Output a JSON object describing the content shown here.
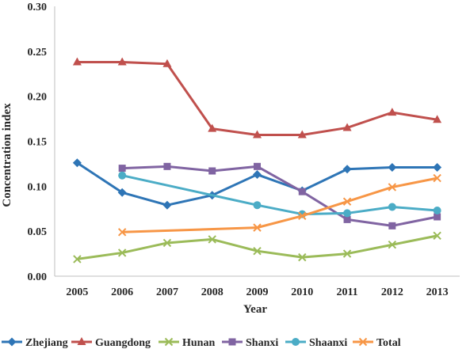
{
  "chart_data": {
    "type": "line",
    "xlabel": "Year",
    "ylabel": "Concentration index",
    "ylim": [
      0,
      0.3
    ],
    "yticks": [
      "0.00",
      "0.05",
      "0.10",
      "0.15",
      "0.20",
      "0.25",
      "0.30"
    ],
    "categories": [
      "2005",
      "2006",
      "2007",
      "2008",
      "2009",
      "2010",
      "2011",
      "2012",
      "2013"
    ],
    "grid": false,
    "legend_position": "bottom",
    "series": [
      {
        "name": "Zhejiang",
        "color": "#2E75B6",
        "marker": "diamond",
        "values": [
          0.126,
          0.093,
          0.079,
          0.09,
          0.113,
          0.095,
          0.119,
          0.121,
          0.121
        ]
      },
      {
        "name": "Guangdong",
        "color": "#C0504D",
        "marker": "triangle",
        "values": [
          0.238,
          0.238,
          0.236,
          0.164,
          0.157,
          0.157,
          0.165,
          0.182,
          0.174
        ]
      },
      {
        "name": "Hunan",
        "color": "#9BBB59",
        "marker": "x",
        "values": [
          0.019,
          0.026,
          0.037,
          0.041,
          0.028,
          0.021,
          0.025,
          0.035,
          0.045
        ]
      },
      {
        "name": "Shanxi",
        "color": "#8064A2",
        "marker": "square",
        "values": [
          null,
          0.12,
          0.122,
          0.117,
          0.122,
          0.094,
          0.063,
          0.056,
          0.066
        ]
      },
      {
        "name": "Shaanxi",
        "color": "#4BACC6",
        "marker": "circle",
        "values": [
          null,
          0.112,
          null,
          null,
          0.079,
          0.069,
          0.07,
          0.077,
          0.073
        ]
      },
      {
        "name": "Total",
        "color": "#F79646",
        "marker": "cross",
        "values": [
          null,
          0.049,
          null,
          null,
          0.054,
          0.067,
          0.083,
          0.099,
          0.109
        ]
      }
    ]
  }
}
